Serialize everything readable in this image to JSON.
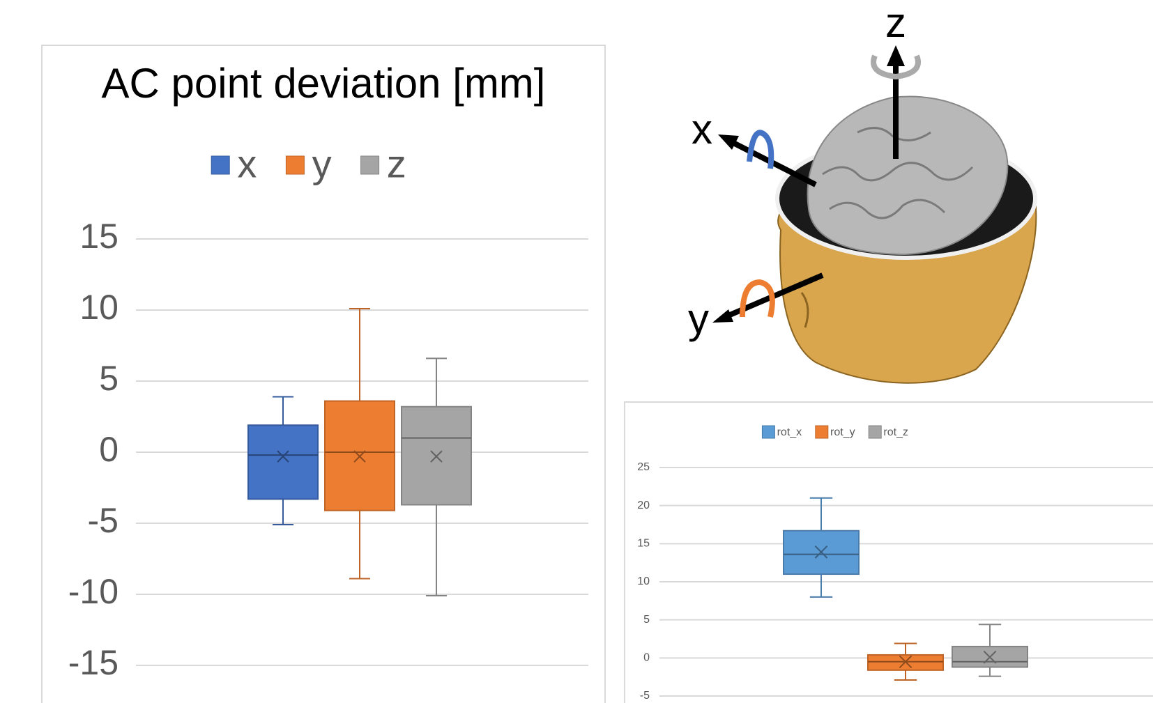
{
  "chart_data": [
    {
      "type": "box",
      "title": "AC point deviation [mm]",
      "ylim": [
        -15,
        15
      ],
      "yticks": [
        -15,
        -10,
        -5,
        0,
        5,
        10,
        15
      ],
      "grid": true,
      "legend": "top",
      "series": [
        {
          "name": "x",
          "color": "#4472c4",
          "min": -5.1,
          "q1": -3.3,
          "median": -0.2,
          "q3": 1.9,
          "max": 3.9,
          "mean": -0.3
        },
        {
          "name": "y",
          "color": "#ed7d31",
          "min": -8.9,
          "q1": -4.1,
          "median": 0,
          "q3": 3.6,
          "max": 10.1,
          "mean": -0.3
        },
        {
          "name": "z",
          "color": "#a5a5a5",
          "min": -10.1,
          "q1": -3.7,
          "median": 1,
          "q3": 3.2,
          "max": 6.6,
          "mean": -0.3
        }
      ]
    },
    {
      "type": "box",
      "ylim": [
        -5,
        25
      ],
      "yticks": [
        -5,
        0,
        5,
        10,
        15,
        20,
        25
      ],
      "grid": true,
      "legend": "top",
      "series": [
        {
          "name": "rot_x",
          "color": "#5b9bd5",
          "min": 8,
          "q1": 11,
          "median": 13.6,
          "q3": 16.7,
          "max": 21,
          "mean": 13.9
        },
        {
          "name": "rot_y",
          "color": "#ed7d31",
          "min": -2.9,
          "q1": -1.6,
          "median": -0.5,
          "q3": 0.4,
          "max": 1.9,
          "mean": -0.5
        },
        {
          "name": "rot_z",
          "color": "#a5a5a5",
          "min": -2.4,
          "q1": -1.2,
          "median": -0.5,
          "q3": 1.5,
          "max": 4.4,
          "mean": 0.1
        }
      ]
    }
  ],
  "illustration": {
    "axis_labels": {
      "z": "z",
      "x": "x",
      "y": "y"
    }
  }
}
